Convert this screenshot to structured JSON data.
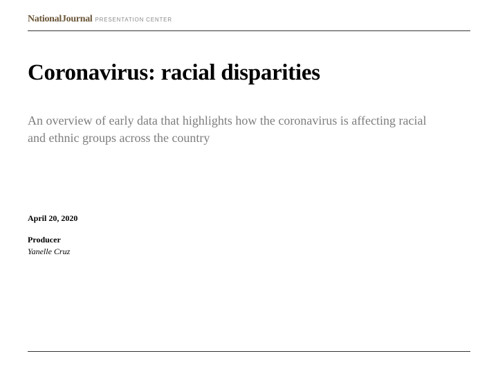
{
  "logo": {
    "main": "NationalJournal",
    "suffix": "PRESENTATION CENTER",
    "main_color": "#6b5638",
    "suffix_color": "#8a8a8a"
  },
  "title": "Coronavirus: racial disparities",
  "subtitle": "An overview of early data that highlights how the coronavirus is affecting racial and ethnic groups across the country",
  "subtitle_color": "#7d7d7d",
  "date": "April 20, 2020",
  "producer_label": "Producer",
  "producer_name": "Yanelle Cruz",
  "rule_color": "#333333",
  "background_color": "#ffffff"
}
